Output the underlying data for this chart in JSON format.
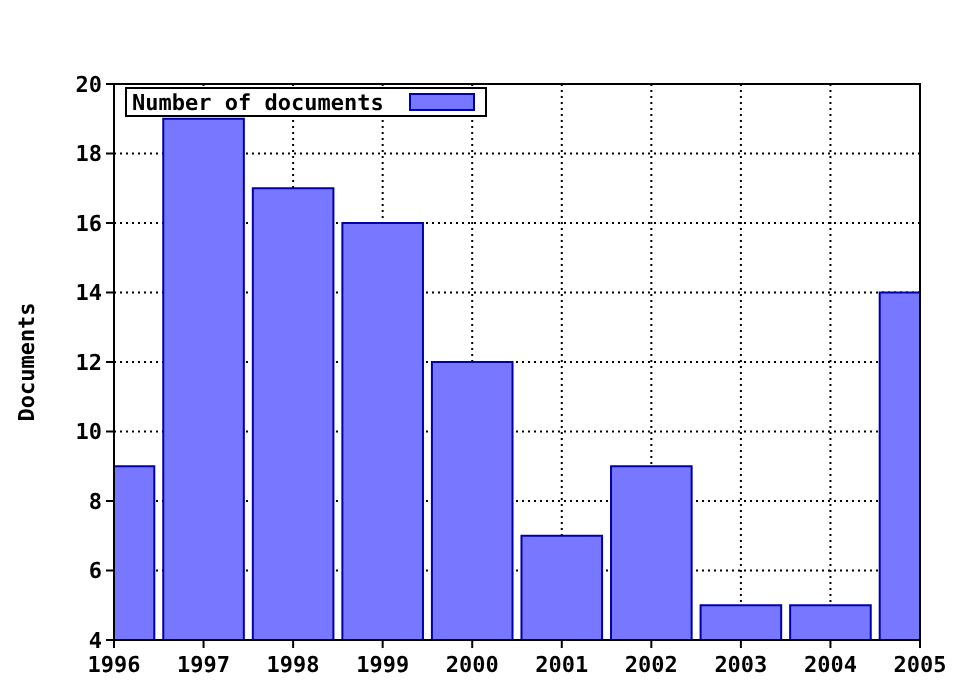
{
  "chart_data": {
    "type": "bar",
    "ylabel": "Documents",
    "x": [
      1996,
      1997,
      1998,
      1999,
      2000,
      2001,
      2002,
      2003,
      2004,
      2005
    ],
    "series": [
      {
        "name": "Number of documents",
        "color": "#7777ff",
        "values": [
          9,
          19,
          17,
          16,
          12,
          7,
          9,
          5,
          5,
          14
        ]
      }
    ],
    "xlim": [
      1996,
      2005
    ],
    "xticks": [
      1996,
      1997,
      1998,
      1999,
      2000,
      2001,
      2002,
      2003,
      2004,
      2005
    ],
    "ylim": [
      4,
      20
    ],
    "yticks": [
      4,
      6,
      8,
      10,
      12,
      14,
      16,
      18,
      20
    ],
    "grid": true,
    "legend": "top left"
  }
}
